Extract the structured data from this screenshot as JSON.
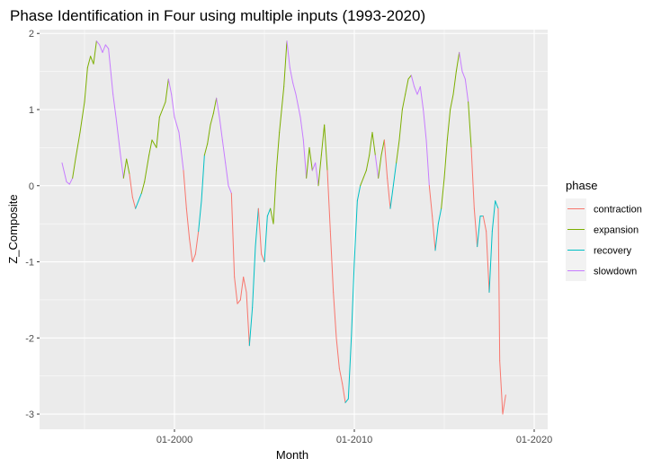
{
  "chart_data": {
    "type": "line",
    "title": "Phase Identification in Four using multiple inputs (1993-2020)",
    "xlabel": "Month",
    "ylabel": "Z_Composite",
    "x_ticks": [
      "01-2000",
      "01-2010",
      "01-2020"
    ],
    "y_ticks": [
      "-3",
      "-2",
      "-1",
      "0",
      "1",
      "2"
    ],
    "xlim": [
      "1992-07",
      "2020-10"
    ],
    "ylim": [
      -3.2,
      2.05
    ],
    "grid": true,
    "legend_position": "right",
    "legend_title": "phase",
    "series": [
      {
        "name": "contraction",
        "color": "#F8766D"
      },
      {
        "name": "expansion",
        "color": "#7CAE00"
      },
      {
        "name": "recovery",
        "color": "#00BFC4"
      },
      {
        "name": "slowdown",
        "color": "#C77CFF"
      }
    ],
    "points": [
      [
        "1993-10",
        0.3,
        "slowdown"
      ],
      [
        "1994-01",
        0.05,
        "slowdown"
      ],
      [
        "1994-03",
        0.02,
        "slowdown"
      ],
      [
        "1994-05",
        0.1,
        "slowdown"
      ],
      [
        "1994-07",
        0.35,
        "expansion"
      ],
      [
        "1994-10",
        0.7,
        "expansion"
      ],
      [
        "1995-01",
        1.1,
        "expansion"
      ],
      [
        "1995-03",
        1.55,
        "expansion"
      ],
      [
        "1995-05",
        1.7,
        "expansion"
      ],
      [
        "1995-07",
        1.6,
        "expansion"
      ],
      [
        "1995-09",
        1.9,
        "expansion"
      ],
      [
        "1995-11",
        1.85,
        "slowdown"
      ],
      [
        "1996-01",
        1.75,
        "slowdown"
      ],
      [
        "1996-03",
        1.85,
        "slowdown"
      ],
      [
        "1996-05",
        1.8,
        "slowdown"
      ],
      [
        "1996-08",
        1.2,
        "slowdown"
      ],
      [
        "1996-10",
        0.9,
        "slowdown"
      ],
      [
        "1997-01",
        0.4,
        "slowdown"
      ],
      [
        "1997-03",
        0.1,
        "slowdown"
      ],
      [
        "1997-05",
        0.35,
        "expansion"
      ],
      [
        "1997-07",
        0.15,
        "expansion"
      ],
      [
        "1997-09",
        -0.15,
        "contraction"
      ],
      [
        "1997-11",
        -0.3,
        "contraction"
      ],
      [
        "1998-01",
        -0.2,
        "recovery"
      ],
      [
        "1998-03",
        -0.1,
        "recovery"
      ],
      [
        "1998-05",
        0.05,
        "expansion"
      ],
      [
        "1998-08",
        0.4,
        "expansion"
      ],
      [
        "1998-10",
        0.6,
        "expansion"
      ],
      [
        "1999-01",
        0.5,
        "expansion"
      ],
      [
        "1999-03",
        0.9,
        "expansion"
      ],
      [
        "1999-05",
        1.0,
        "expansion"
      ],
      [
        "1999-07",
        1.1,
        "expansion"
      ],
      [
        "1999-09",
        1.4,
        "expansion"
      ],
      [
        "1999-11",
        1.2,
        "slowdown"
      ],
      [
        "2000-01",
        0.9,
        "slowdown"
      ],
      [
        "2000-04",
        0.7,
        "slowdown"
      ],
      [
        "2000-07",
        0.2,
        "slowdown"
      ],
      [
        "2000-09",
        -0.3,
        "contraction"
      ],
      [
        "2000-11",
        -0.7,
        "contraction"
      ],
      [
        "2001-01",
        -1.0,
        "contraction"
      ],
      [
        "2001-03",
        -0.9,
        "contraction"
      ],
      [
        "2001-05",
        -0.6,
        "contraction"
      ],
      [
        "2001-07",
        -0.2,
        "recovery"
      ],
      [
        "2001-09",
        0.4,
        "recovery"
      ],
      [
        "2001-11",
        0.55,
        "expansion"
      ],
      [
        "2002-01",
        0.8,
        "expansion"
      ],
      [
        "2002-03",
        0.95,
        "expansion"
      ],
      [
        "2002-05",
        1.15,
        "expansion"
      ],
      [
        "2002-07",
        0.9,
        "slowdown"
      ],
      [
        "2002-09",
        0.6,
        "slowdown"
      ],
      [
        "2002-11",
        0.3,
        "slowdown"
      ],
      [
        "2003-01",
        0.0,
        "slowdown"
      ],
      [
        "2003-03",
        -0.1,
        "slowdown"
      ],
      [
        "2003-05",
        -1.2,
        "contraction"
      ],
      [
        "2003-07",
        -1.55,
        "contraction"
      ],
      [
        "2003-09",
        -1.5,
        "contraction"
      ],
      [
        "2003-11",
        -1.2,
        "contraction"
      ],
      [
        "2004-01",
        -1.4,
        "contraction"
      ],
      [
        "2004-03",
        -2.1,
        "contraction"
      ],
      [
        "2004-05",
        -1.6,
        "recovery"
      ],
      [
        "2004-07",
        -0.8,
        "recovery"
      ],
      [
        "2004-09",
        -0.3,
        "recovery"
      ],
      [
        "2004-11",
        -0.9,
        "contraction"
      ],
      [
        "2005-01",
        -1.0,
        "contraction"
      ],
      [
        "2005-03",
        -0.4,
        "recovery"
      ],
      [
        "2005-05",
        -0.3,
        "recovery"
      ],
      [
        "2005-07",
        -0.5,
        "expansion"
      ],
      [
        "2005-09",
        0.2,
        "expansion"
      ],
      [
        "2005-11",
        0.7,
        "expansion"
      ],
      [
        "2006-02",
        1.3,
        "expansion"
      ],
      [
        "2006-04",
        1.9,
        "expansion"
      ],
      [
        "2006-06",
        1.55,
        "slowdown"
      ],
      [
        "2006-08",
        1.35,
        "slowdown"
      ],
      [
        "2006-10",
        1.2,
        "slowdown"
      ],
      [
        "2007-01",
        0.9,
        "slowdown"
      ],
      [
        "2007-03",
        0.6,
        "slowdown"
      ],
      [
        "2007-05",
        0.1,
        "slowdown"
      ],
      [
        "2007-07",
        0.5,
        "expansion"
      ],
      [
        "2007-09",
        0.2,
        "expansion"
      ],
      [
        "2007-11",
        0.3,
        "slowdown"
      ],
      [
        "2008-01",
        0.0,
        "slowdown"
      ],
      [
        "2008-03",
        0.4,
        "expansion"
      ],
      [
        "2008-05",
        0.8,
        "expansion"
      ],
      [
        "2008-07",
        0.2,
        "expansion"
      ],
      [
        "2008-09",
        -0.6,
        "contraction"
      ],
      [
        "2008-11",
        -1.4,
        "contraction"
      ],
      [
        "2009-01",
        -2.0,
        "contraction"
      ],
      [
        "2009-03",
        -2.4,
        "contraction"
      ],
      [
        "2009-05",
        -2.6,
        "contraction"
      ],
      [
        "2009-07",
        -2.85,
        "contraction"
      ],
      [
        "2009-09",
        -2.8,
        "recovery"
      ],
      [
        "2009-11",
        -2.0,
        "recovery"
      ],
      [
        "2010-01",
        -1.0,
        "recovery"
      ],
      [
        "2010-03",
        -0.2,
        "recovery"
      ],
      [
        "2010-05",
        0.0,
        "recovery"
      ],
      [
        "2010-07",
        0.1,
        "expansion"
      ],
      [
        "2010-09",
        0.2,
        "expansion"
      ],
      [
        "2010-11",
        0.4,
        "expansion"
      ],
      [
        "2011-01",
        0.7,
        "expansion"
      ],
      [
        "2011-03",
        0.4,
        "expansion"
      ],
      [
        "2011-05",
        0.1,
        "slowdown"
      ],
      [
        "2011-07",
        0.4,
        "expansion"
      ],
      [
        "2011-09",
        0.6,
        "expansion"
      ],
      [
        "2011-11",
        0.1,
        "contraction"
      ],
      [
        "2012-01",
        -0.3,
        "contraction"
      ],
      [
        "2012-03",
        0.0,
        "recovery"
      ],
      [
        "2012-05",
        0.3,
        "recovery"
      ],
      [
        "2012-07",
        0.6,
        "expansion"
      ],
      [
        "2012-09",
        1.0,
        "expansion"
      ],
      [
        "2012-11",
        1.2,
        "expansion"
      ],
      [
        "2013-01",
        1.4,
        "expansion"
      ],
      [
        "2013-03",
        1.45,
        "expansion"
      ],
      [
        "2013-05",
        1.3,
        "slowdown"
      ],
      [
        "2013-07",
        1.2,
        "slowdown"
      ],
      [
        "2013-09",
        1.3,
        "slowdown"
      ],
      [
        "2013-11",
        1.0,
        "slowdown"
      ],
      [
        "2014-01",
        0.6,
        "slowdown"
      ],
      [
        "2014-03",
        0.0,
        "slowdown"
      ],
      [
        "2014-05",
        -0.4,
        "contraction"
      ],
      [
        "2014-07",
        -0.85,
        "contraction"
      ],
      [
        "2014-09",
        -0.5,
        "recovery"
      ],
      [
        "2014-11",
        -0.3,
        "recovery"
      ],
      [
        "2015-01",
        0.1,
        "expansion"
      ],
      [
        "2015-03",
        0.6,
        "expansion"
      ],
      [
        "2015-05",
        1.0,
        "expansion"
      ],
      [
        "2015-07",
        1.2,
        "expansion"
      ],
      [
        "2015-09",
        1.5,
        "expansion"
      ],
      [
        "2015-11",
        1.75,
        "expansion"
      ],
      [
        "2016-01",
        1.5,
        "slowdown"
      ],
      [
        "2016-03",
        1.4,
        "slowdown"
      ],
      [
        "2016-05",
        1.1,
        "slowdown"
      ],
      [
        "2016-07",
        0.5,
        "expansion"
      ],
      [
        "2016-09",
        -0.3,
        "contraction"
      ],
      [
        "2016-11",
        -0.8,
        "contraction"
      ],
      [
        "2017-01",
        -0.4,
        "recovery"
      ],
      [
        "2017-03",
        -0.4,
        "recovery"
      ],
      [
        "2017-05",
        -0.6,
        "contraction"
      ],
      [
        "2017-07",
        -1.4,
        "contraction"
      ],
      [
        "2017-09",
        -0.6,
        "recovery"
      ],
      [
        "2017-11",
        -0.2,
        "recovery"
      ],
      [
        "2018-01",
        -0.3,
        "recovery"
      ],
      [
        "2018-02",
        -2.3,
        "contraction"
      ],
      [
        "2018-04",
        -3.0,
        "contraction"
      ],
      [
        "2018-06",
        -2.75,
        "contraction"
      ]
    ]
  }
}
